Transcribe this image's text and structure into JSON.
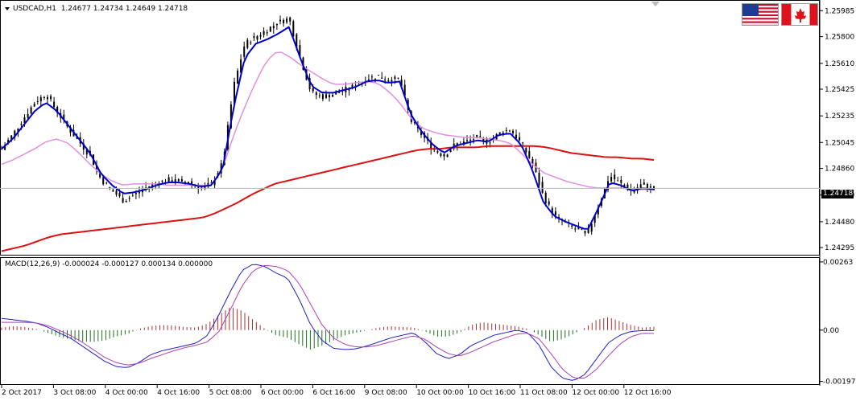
{
  "chart_header": {
    "symbol_timeframe": "USDCAD,H1",
    "ohlc": "1.24677 1.24734 1.24649 1.24718"
  },
  "macd_header": {
    "label": "MACD(12,26,9) -0.000024 -0.000127 0.000134 0.000000"
  },
  "price_axis": {
    "ticks": [
      "1.25985",
      "1.25800",
      "1.25610",
      "1.25425",
      "1.25235",
      "1.25045",
      "1.24860",
      "1.24670",
      "1.24480",
      "1.24295"
    ],
    "current_price": "1.24718"
  },
  "macd_axis": {
    "ticks": [
      "0.00263",
      "0.00",
      "-0.001976"
    ]
  },
  "time_axis": {
    "labels": [
      "2 Oct 2017",
      "3 Oct 08:00",
      "4 Oct 00:00",
      "4 Oct 16:00",
      "5 Oct 08:00",
      "6 Oct 00:00",
      "6 Oct 16:00",
      "9 Oct 08:00",
      "10 Oct 00:00",
      "10 Oct 16:00",
      "11 Oct 08:00",
      "12 Oct 00:00",
      "12 Oct 16:00"
    ]
  },
  "flags": {
    "left": "us-flag-icon",
    "right": "canada-flag-icon"
  },
  "colors": {
    "candles": "#000000",
    "fast_ma": "#0000cc",
    "mid_ma": "#e090e0",
    "slow_ma": "#dd1111",
    "macd_line": "#2020c0",
    "signal_line": "#b040b0",
    "hist_positive": "#b03030",
    "hist_negative": "#207020",
    "price_tag_bg": "#000000"
  },
  "chart_data": {
    "type": "candlestick",
    "symbol": "USDCAD",
    "timeframe": "H1",
    "ylim": [
      1.2425,
      1.2605
    ],
    "macd_ylim": [
      -0.00205,
      0.00275
    ],
    "close_path": [
      1.25,
      1.251,
      1.2522,
      1.2533,
      1.2539,
      1.2527,
      1.2515,
      1.2505,
      1.2495,
      1.2478,
      1.247,
      1.2463,
      1.2467,
      1.2472,
      1.2475,
      1.2478,
      1.2477,
      1.2476,
      1.2472,
      1.2475,
      1.249,
      1.2545,
      1.2575,
      1.258,
      1.2585,
      1.259,
      1.2593,
      1.2565,
      1.254,
      1.2537,
      1.2539,
      1.2542,
      1.2545,
      1.255,
      1.2552,
      1.2549,
      1.255,
      1.252,
      1.251,
      1.25,
      1.2495,
      1.2503,
      1.2505,
      1.2508,
      1.2505,
      1.2511,
      1.2514,
      1.2504,
      1.249,
      1.2466,
      1.2452,
      1.2447,
      1.2442,
      1.244,
      1.246,
      1.2481,
      1.2475,
      1.247,
      1.2475,
      1.2471
    ],
    "fast_ma_path": [
      1.25,
      1.2507,
      1.2517,
      1.2527,
      1.2533,
      1.2527,
      1.2517,
      1.2507,
      1.2497,
      1.2482,
      1.2474,
      1.2468,
      1.2469,
      1.2471,
      1.2474,
      1.2476,
      1.2476,
      1.2475,
      1.2473,
      1.2474,
      1.2486,
      1.253,
      1.2565,
      1.2575,
      1.2578,
      1.2582,
      1.2587,
      1.2565,
      1.2545,
      1.254,
      1.254,
      1.2542,
      1.2544,
      1.2548,
      1.2549,
      1.2547,
      1.2548,
      1.2525,
      1.2512,
      1.2503,
      1.2497,
      1.2502,
      1.2504,
      1.2506,
      1.2505,
      1.251,
      1.2511,
      1.2503,
      1.2485,
      1.2462,
      1.2452,
      1.2448,
      1.2445,
      1.2442,
      1.2458,
      1.2476,
      1.2474,
      1.247,
      1.2472,
      1.2471
    ],
    "mid_ma_path": [
      1.2489,
      1.2492,
      1.2496,
      1.25,
      1.2505,
      1.2507,
      1.2504,
      1.2497,
      1.2489,
      1.2482,
      1.2477,
      1.2474,
      1.2475,
      1.2475,
      1.2475,
      1.2474,
      1.2474,
      1.2474,
      1.2474,
      1.2474,
      1.2486,
      1.251,
      1.253,
      1.2548,
      1.2563,
      1.257,
      1.2566,
      1.256,
      1.2555,
      1.255,
      1.2546,
      1.2546,
      1.2547,
      1.2548,
      1.2547,
      1.2541,
      1.2533,
      1.2522,
      1.2515,
      1.2512,
      1.251,
      1.2509,
      1.2508,
      1.2508,
      1.2507,
      1.2506,
      1.2504,
      1.2497,
      1.2489,
      1.2483,
      1.248,
      1.2477,
      1.2475,
      1.2473,
      1.2472,
      1.2472,
      1.2472,
      1.2471,
      1.2471,
      1.2471
    ],
    "slow_ma_path": [
      1.2427,
      1.2429,
      1.2431,
      1.2434,
      1.2437,
      1.2439,
      1.244,
      1.2441,
      1.2442,
      1.2443,
      1.2444,
      1.2445,
      1.2446,
      1.2447,
      1.2448,
      1.2449,
      1.245,
      1.2451,
      1.2454,
      1.2458,
      1.2462,
      1.2467,
      1.2471,
      1.2475,
      1.2477,
      1.2479,
      1.2481,
      1.2483,
      1.2485,
      1.2487,
      1.2489,
      1.2491,
      1.2493,
      1.2495,
      1.2497,
      1.2499,
      1.25,
      1.25,
      1.2501,
      1.2501,
      1.2501,
      1.2502,
      1.2502,
      1.2502,
      1.2502,
      1.2502,
      1.2501,
      1.2499,
      1.2497,
      1.2496,
      1.2495,
      1.2494,
      1.2494,
      1.2493,
      1.2493,
      1.2492
    ],
    "macd_path": [
      0.00045,
      0.0004,
      0.00035,
      0.00028,
      0.00012,
      -0.0001,
      -0.0003,
      -0.0006,
      -0.0009,
      -0.0012,
      -0.0014,
      -0.00145,
      -0.00125,
      -0.00095,
      -0.0008,
      -0.0007,
      -0.0006,
      -0.0005,
      -0.0002,
      0.0006,
      0.0015,
      0.0023,
      0.00255,
      0.00245,
      0.0022,
      0.002,
      0.0012,
      0.0002,
      -0.0004,
      -0.0007,
      -0.00075,
      -0.00072,
      -0.0006,
      -0.00045,
      -0.0003,
      -0.0002,
      -0.0001,
      -0.00045,
      -0.0009,
      -0.0011,
      -0.00095,
      -0.0006,
      -0.0004,
      -0.0002,
      -0.0001,
      0.0,
      -0.0001,
      -0.0006,
      -0.0014,
      -0.00185,
      -0.00195,
      -0.0017,
      -0.0011,
      -0.0005,
      -0.0002,
      -5e-05,
      -2e-05,
      -2e-05
    ],
    "signal_path": [
      0.0003,
      0.0003,
      0.0003,
      0.00028,
      0.00018,
      0.0,
      -0.0002,
      -0.00045,
      -0.00075,
      -0.00105,
      -0.00125,
      -0.00135,
      -0.00128,
      -0.0011,
      -0.00095,
      -0.0008,
      -0.00068,
      -0.00058,
      -0.00045,
      -5e-05,
      0.0008,
      0.0017,
      0.0023,
      0.0025,
      0.00245,
      0.0023,
      0.0018,
      0.001,
      0.0002,
      -0.0003,
      -0.00055,
      -0.00065,
      -0.00065,
      -0.00057,
      -0.00045,
      -0.00033,
      -0.00022,
      -0.00035,
      -0.00065,
      -0.0009,
      -0.001,
      -0.00085,
      -0.00065,
      -0.00045,
      -0.0003,
      -0.00015,
      -0.00012,
      -0.00035,
      -0.0009,
      -0.0015,
      -0.00185,
      -0.00185,
      -0.0015,
      -0.001,
      -0.00055,
      -0.00025,
      -0.00012,
      -0.00013
    ],
    "histogram": [
      0.0001,
      0.00015,
      0.00012,
      5e-05,
      -0.0001,
      -0.00025,
      -0.00035,
      -0.00045,
      -0.00045,
      -0.0004,
      -0.00025,
      -0.00015,
      5e-05,
      0.00015,
      0.0002,
      0.00018,
      0.00012,
      0.0001,
      0.00025,
      0.0006,
      0.0009,
      0.00075,
      0.0004,
      5e-05,
      -0.0002,
      -0.0003,
      -0.00055,
      -0.00075,
      -0.0006,
      -0.0004,
      -0.0002,
      -0.0001,
      0.0,
      0.0001,
      0.00015,
      0.00012,
      0.0001,
      -5e-05,
      -0.00025,
      -0.00025,
      -0.0001,
      0.0002,
      0.0003,
      0.00025,
      0.0002,
      0.00015,
      5e-05,
      -0.0002,
      -0.00045,
      -0.00035,
      -0.00015,
      0.0001,
      0.0004,
      0.0005,
      0.00035,
      0.0002,
      0.0001,
      0.00013
    ]
  }
}
